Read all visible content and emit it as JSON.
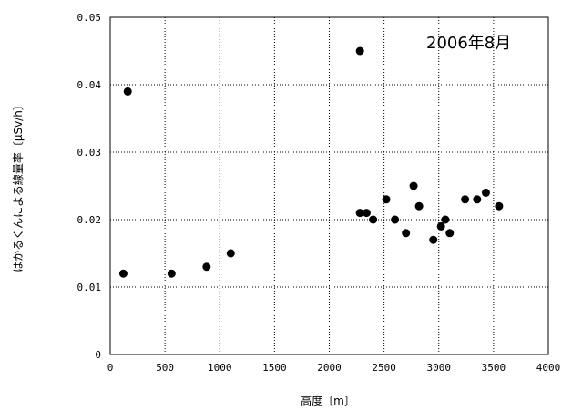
{
  "chart_data": {
    "type": "scatter",
    "title": "",
    "annotation": "2006年8月",
    "xlabel": "高度〔m〕",
    "ylabel": "はかるくんによる線量率〔μSv/h〕",
    "xlim": [
      0,
      4000
    ],
    "ylim": [
      0,
      0.05
    ],
    "x_ticks": [
      "0",
      "500",
      "1000",
      "1500",
      "2000",
      "2500",
      "3000",
      "3500",
      "4000"
    ],
    "y_ticks": [
      "0",
      "0.01",
      "0.02",
      "0.03",
      "0.04",
      "0.05"
    ],
    "grid": true,
    "marker_color": "#000000",
    "series": [
      {
        "points": [
          {
            "x": 120,
            "y": 0.012
          },
          {
            "x": 160,
            "y": 0.039
          },
          {
            "x": 560,
            "y": 0.012
          },
          {
            "x": 880,
            "y": 0.013
          },
          {
            "x": 1100,
            "y": 0.015
          },
          {
            "x": 2280,
            "y": 0.045
          },
          {
            "x": 2280,
            "y": 0.021
          },
          {
            "x": 2340,
            "y": 0.021
          },
          {
            "x": 2400,
            "y": 0.02
          },
          {
            "x": 2520,
            "y": 0.023
          },
          {
            "x": 2600,
            "y": 0.02
          },
          {
            "x": 2700,
            "y": 0.018
          },
          {
            "x": 2770,
            "y": 0.025
          },
          {
            "x": 2820,
            "y": 0.022
          },
          {
            "x": 2950,
            "y": 0.017
          },
          {
            "x": 3020,
            "y": 0.019
          },
          {
            "x": 3060,
            "y": 0.02
          },
          {
            "x": 3100,
            "y": 0.018
          },
          {
            "x": 3240,
            "y": 0.023
          },
          {
            "x": 3350,
            "y": 0.023
          },
          {
            "x": 3430,
            "y": 0.024
          },
          {
            "x": 3550,
            "y": 0.022
          }
        ]
      }
    ]
  }
}
